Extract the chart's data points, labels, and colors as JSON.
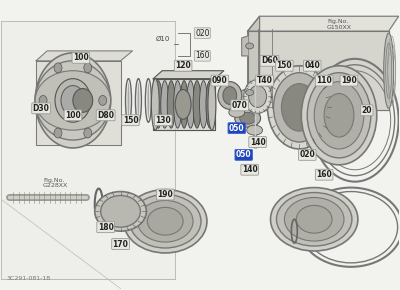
{
  "background_color": "#f2f2ee",
  "fig_no_right": "Fig.No.\nG150XX",
  "fig_no_left": "Fig.No.\nG228XX",
  "bottom_ref": "3C291-081-18",
  "label_bg_blue": "#2244bb",
  "label_bg_gray": "#e8e8e0",
  "label_text_blue": "#ffffff",
  "label_text_gray": "#222222",
  "line_color": "#777777",
  "part_color_light": "#d8d8d0",
  "part_color_mid": "#b8b8b0",
  "part_color_dark": "#888880"
}
